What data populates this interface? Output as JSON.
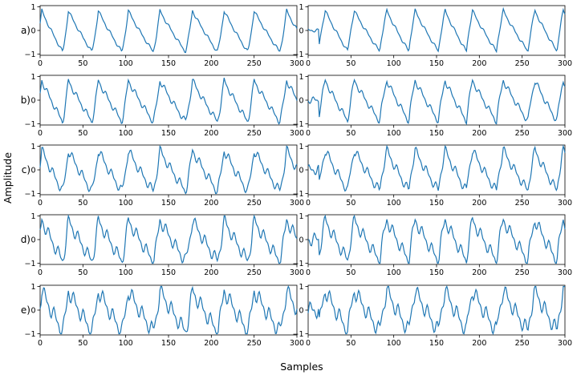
{
  "figure": {
    "xlabel": "Samples",
    "ylabel": "Amplitude",
    "row_labels": [
      "a)",
      "b)",
      "c)",
      "d)",
      "e)"
    ],
    "line_color": "#1f77b4"
  },
  "chart_data": {
    "type": "line",
    "layout": "grid 5 rows x 2 columns",
    "xlim": [
      0,
      300
    ],
    "ylim": [
      -1,
      1
    ],
    "x_ticks": [
      "0",
      "50",
      "100",
      "150",
      "200",
      "250",
      "300"
    ],
    "y_ticks": [
      "-1",
      "0",
      "1"
    ],
    "panels": [
      {
        "row": "a)",
        "col": 1,
        "cycle_peaks": [
          2,
          33,
          68,
          103,
          140,
          178,
          215,
          250,
          288
        ]
      },
      {
        "row": "a)",
        "col": 2,
        "cycle_peaks": [
          20,
          54,
          92,
          125,
          160,
          192,
          228,
          265,
          298
        ]
      },
      {
        "row": "b)",
        "col": 1,
        "cycle_peaks": [
          2,
          33,
          68,
          103,
          140,
          178,
          215,
          250,
          288
        ]
      },
      {
        "row": "b)",
        "col": 2,
        "cycle_peaks": [
          20,
          54,
          92,
          125,
          160,
          192,
          228,
          265,
          298
        ]
      },
      {
        "row": "c)",
        "col": 1,
        "cycle_peaks": [
          2,
          33,
          68,
          103,
          140,
          178,
          215,
          250,
          288
        ]
      },
      {
        "row": "c)",
        "col": 2,
        "cycle_peaks": [
          20,
          54,
          92,
          125,
          160,
          192,
          228,
          265,
          298
        ]
      },
      {
        "row": "d)",
        "col": 1,
        "cycle_peaks": [
          2,
          33,
          68,
          103,
          140,
          178,
          215,
          250,
          288
        ]
      },
      {
        "row": "d)",
        "col": 2,
        "cycle_peaks": [
          20,
          54,
          92,
          125,
          160,
          192,
          228,
          265,
          298
        ]
      },
      {
        "row": "e)",
        "col": 1,
        "cycle_peaks": [
          2,
          33,
          68,
          103,
          140,
          178,
          215,
          250,
          288
        ]
      },
      {
        "row": "e)",
        "col": 2,
        "cycle_peaks": [
          20,
          54,
          92,
          125,
          160,
          192,
          228,
          265,
          298
        ]
      }
    ]
  }
}
